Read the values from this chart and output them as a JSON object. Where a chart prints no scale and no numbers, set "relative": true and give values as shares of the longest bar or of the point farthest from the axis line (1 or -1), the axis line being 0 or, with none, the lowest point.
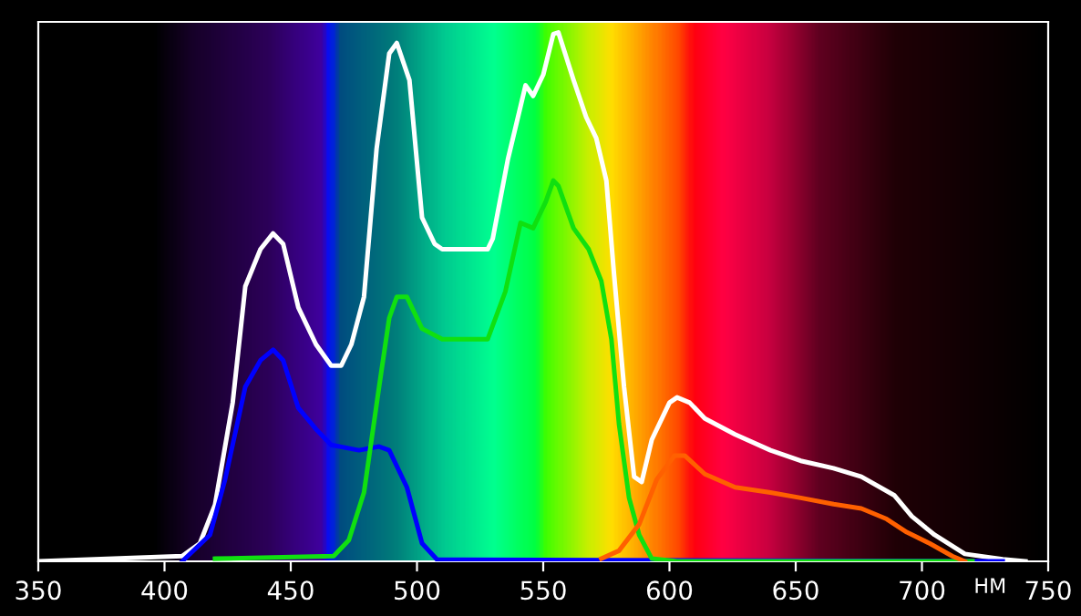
{
  "chart_data": {
    "type": "line",
    "relative": true,
    "xlabel": "НМ",
    "xlim": [
      350,
      750
    ],
    "xticks": [
      350,
      400,
      450,
      500,
      550,
      600,
      650,
      700,
      750
    ],
    "grid": false,
    "legend": false,
    "marker": "none",
    "line_style": "solid",
    "series": [
      {
        "color": "#ffffff",
        "x": [
          350,
          407,
          414,
          420,
          427,
          432,
          438,
          443,
          447,
          453,
          460,
          466,
          470,
          474,
          479,
          484,
          489,
          492,
          497,
          502,
          507,
          510,
          528,
          530,
          536,
          541,
          543,
          546,
          550,
          554,
          556,
          562,
          567,
          571,
          575,
          578,
          582,
          586,
          589,
          593,
          600,
          603,
          608,
          614,
          626,
          640,
          652,
          665,
          676,
          689,
          696,
          705,
          717,
          732,
          741
        ],
        "values": [
          0,
          0.01,
          0.034,
          0.107,
          0.3,
          0.52,
          0.59,
          0.62,
          0.6,
          0.48,
          0.41,
          0.37,
          0.37,
          0.41,
          0.5,
          0.78,
          0.96,
          0.98,
          0.91,
          0.65,
          0.6,
          0.59,
          0.59,
          0.61,
          0.76,
          0.86,
          0.9,
          0.88,
          0.92,
          0.997,
          1,
          0.91,
          0.84,
          0.8,
          0.72,
          0.545,
          0.33,
          0.16,
          0.15,
          0.23,
          0.3,
          0.31,
          0.3,
          0.27,
          0.24,
          0.21,
          0.19,
          0.176,
          0.16,
          0.125,
          0.085,
          0.05,
          0.014,
          0.004,
          0
        ]
      },
      {
        "color": "#0000ff",
        "x": [
          407,
          418,
          424,
          432,
          438,
          443,
          447,
          453,
          460,
          466,
          477,
          485,
          489,
          496,
          502,
          508,
          732
        ],
        "values": [
          0,
          0.05,
          0.155,
          0.33,
          0.38,
          0.4,
          0.38,
          0.29,
          0.25,
          0.22,
          0.21,
          0.217,
          0.21,
          0.14,
          0.034,
          0.003,
          0
        ]
      },
      {
        "color": "#10e010",
        "x": [
          420,
          467,
          473,
          479,
          485,
          489,
          492,
          496,
          502,
          510,
          517,
          528,
          535,
          541,
          546,
          551,
          554,
          556,
          562,
          568,
          573,
          577,
          580,
          584,
          588,
          593,
          603,
          720
        ],
        "values": [
          0.005,
          0.01,
          0.04,
          0.13,
          0.33,
          0.46,
          0.5,
          0.5,
          0.44,
          0.42,
          0.42,
          0.42,
          0.51,
          0.64,
          0.63,
          0.68,
          0.72,
          0.71,
          0.63,
          0.59,
          0.53,
          0.42,
          0.26,
          0.12,
          0.05,
          0.005,
          0,
          0
        ]
      },
      {
        "color": "#ff6000",
        "x": [
          573,
          580,
          588,
          595,
          602,
          606,
          614,
          626,
          640,
          652,
          665,
          676,
          686,
          694,
          703,
          712,
          717
        ],
        "values": [
          0.005,
          0.02,
          0.07,
          0.155,
          0.2,
          0.2,
          0.165,
          0.14,
          0.13,
          0.12,
          0.108,
          0.1,
          0.08,
          0.055,
          0.034,
          0.01,
          0
        ]
      }
    ]
  }
}
